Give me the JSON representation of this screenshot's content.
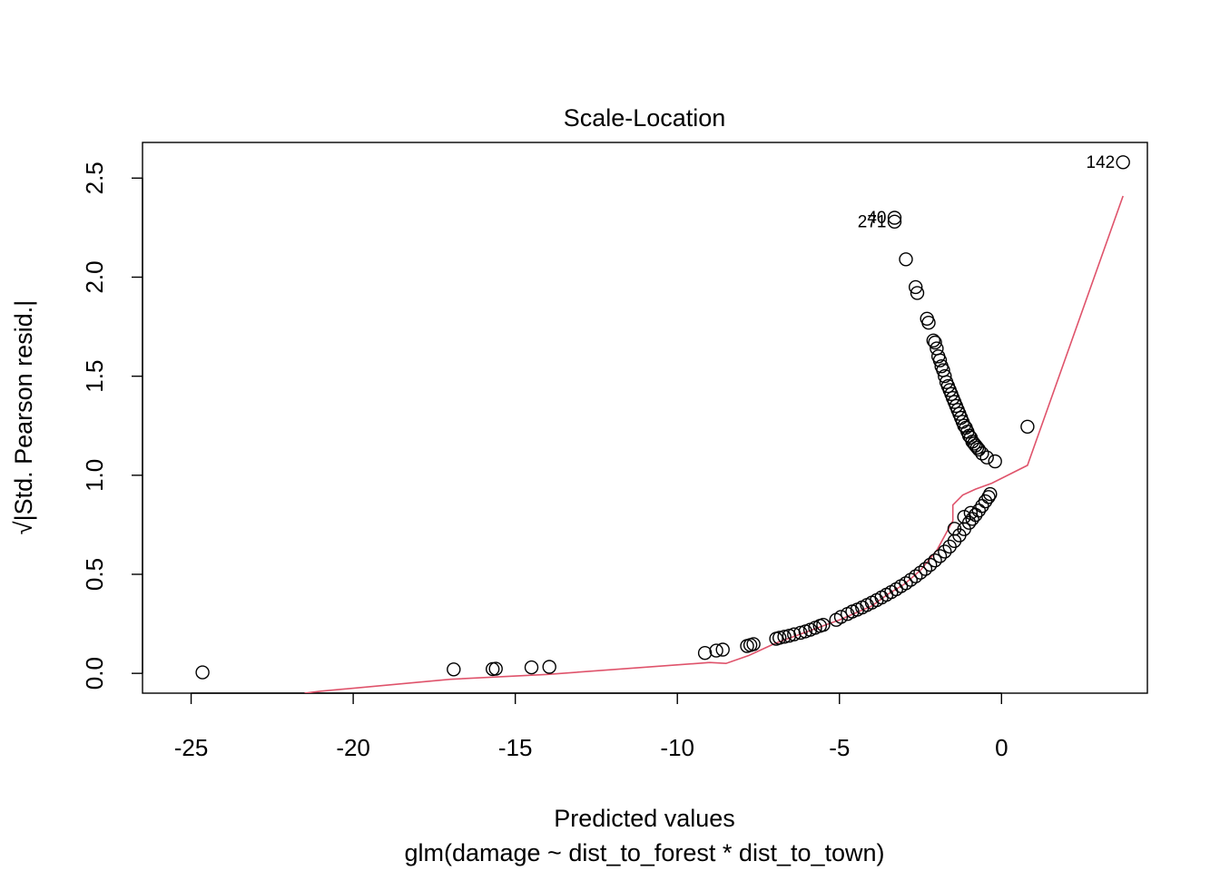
{
  "chart_data": {
    "type": "scatter",
    "title": "Scale-Location",
    "xlabel": "Predicted values",
    "subtitle": "glm(damage ~ dist_to_forest * dist_to_town)",
    "ylabel": "√|Std. Pearson resid.|",
    "xlim": [
      -26.5,
      4.5
    ],
    "ylim": [
      -0.1,
      2.68
    ],
    "xticks": [
      -25,
      -20,
      -15,
      -10,
      -5,
      0
    ],
    "xtick_labels": [
      "-25",
      "-20",
      "-15",
      "-10",
      "-5",
      "0"
    ],
    "yticks": [
      0.0,
      0.5,
      1.0,
      1.5,
      2.0,
      2.5
    ],
    "ytick_labels": [
      "0.0",
      "0.5",
      "1.0",
      "1.5",
      "2.0",
      "2.5"
    ],
    "grid": false,
    "colors": {
      "points": "#000000",
      "smooth": "#DF536B",
      "frame": "#000000"
    },
    "point_labels": [
      {
        "text": "142",
        "x": 3.75,
        "y": 2.58
      },
      {
        "text": "40",
        "x": -3.3,
        "y": 2.3
      },
      {
        "text": "271",
        "x": -3.3,
        "y": 2.28
      }
    ],
    "points": [
      [
        -24.65,
        0.005
      ],
      [
        -16.9,
        0.02
      ],
      [
        -15.7,
        0.022
      ],
      [
        -15.6,
        0.023
      ],
      [
        -14.5,
        0.03
      ],
      [
        -13.95,
        0.033
      ],
      [
        -9.15,
        0.103
      ],
      [
        -8.8,
        0.115
      ],
      [
        -8.6,
        0.12
      ],
      [
        -7.85,
        0.138
      ],
      [
        -7.75,
        0.143
      ],
      [
        -7.65,
        0.148
      ],
      [
        -6.95,
        0.175
      ],
      [
        -6.85,
        0.18
      ],
      [
        -6.7,
        0.185
      ],
      [
        -6.55,
        0.19
      ],
      [
        -6.4,
        0.197
      ],
      [
        -6.2,
        0.205
      ],
      [
        -6.05,
        0.212
      ],
      [
        -5.9,
        0.22
      ],
      [
        -5.75,
        0.23
      ],
      [
        -5.6,
        0.24
      ],
      [
        -5.5,
        0.245
      ],
      [
        -5.1,
        0.27
      ],
      [
        -4.95,
        0.285
      ],
      [
        -4.75,
        0.3
      ],
      [
        -4.6,
        0.312
      ],
      [
        -4.45,
        0.322
      ],
      [
        -4.3,
        0.333
      ],
      [
        -4.15,
        0.345
      ],
      [
        -4.0,
        0.357
      ],
      [
        -3.85,
        0.37
      ],
      [
        -3.7,
        0.383
      ],
      [
        -3.55,
        0.397
      ],
      [
        -3.4,
        0.41
      ],
      [
        -3.25,
        0.425
      ],
      [
        -3.1,
        0.44
      ],
      [
        -2.95,
        0.455
      ],
      [
        -2.8,
        0.472
      ],
      [
        -2.65,
        0.49
      ],
      [
        -2.5,
        0.508
      ],
      [
        -2.35,
        0.527
      ],
      [
        -2.2,
        0.548
      ],
      [
        -2.05,
        0.57
      ],
      [
        -1.9,
        0.592
      ],
      [
        -1.75,
        0.615
      ],
      [
        -1.6,
        0.64
      ],
      [
        -1.45,
        0.668
      ],
      [
        -1.3,
        0.697
      ],
      [
        -1.15,
        0.728
      ],
      [
        -1.0,
        0.76
      ],
      [
        -0.9,
        0.78
      ],
      [
        -0.8,
        0.8
      ],
      [
        -0.7,
        0.822
      ],
      [
        -0.6,
        0.845
      ],
      [
        -0.5,
        0.868
      ],
      [
        -0.4,
        0.89
      ],
      [
        -0.35,
        0.905
      ],
      [
        -1.45,
        0.73
      ],
      [
        -1.15,
        0.79
      ],
      [
        -0.95,
        0.81
      ],
      [
        -3.3,
        2.3
      ],
      [
        -3.3,
        2.28
      ],
      [
        -2.95,
        2.09
      ],
      [
        -2.65,
        1.95
      ],
      [
        -2.6,
        1.92
      ],
      [
        -2.3,
        1.79
      ],
      [
        -2.25,
        1.77
      ],
      [
        -2.1,
        1.68
      ],
      [
        -2.05,
        1.67
      ],
      [
        -2.0,
        1.64
      ],
      [
        -1.95,
        1.6
      ],
      [
        -1.9,
        1.58
      ],
      [
        -1.85,
        1.55
      ],
      [
        -1.8,
        1.53
      ],
      [
        -1.75,
        1.5
      ],
      [
        -1.7,
        1.47
      ],
      [
        -1.65,
        1.45
      ],
      [
        -1.6,
        1.43
      ],
      [
        -1.55,
        1.41
      ],
      [
        -1.5,
        1.39
      ],
      [
        -1.45,
        1.37
      ],
      [
        -1.4,
        1.35
      ],
      [
        -1.35,
        1.33
      ],
      [
        -1.3,
        1.31
      ],
      [
        -1.25,
        1.29
      ],
      [
        -1.2,
        1.27
      ],
      [
        -1.15,
        1.25
      ],
      [
        -1.1,
        1.24
      ],
      [
        -1.05,
        1.22
      ],
      [
        -1.0,
        1.2
      ],
      [
        -0.95,
        1.19
      ],
      [
        -0.9,
        1.17
      ],
      [
        -0.85,
        1.16
      ],
      [
        -0.8,
        1.15
      ],
      [
        -0.75,
        1.14
      ],
      [
        -0.7,
        1.13
      ],
      [
        -0.6,
        1.11
      ],
      [
        -0.45,
        1.09
      ],
      [
        -0.2,
        1.07
      ],
      [
        0.8,
        1.245
      ],
      [
        3.75,
        2.58
      ]
    ],
    "smooth_line": [
      [
        -21.5,
        -0.1
      ],
      [
        -21.0,
        -0.09
      ],
      [
        -17.0,
        -0.03
      ],
      [
        -14.0,
        -0.005
      ],
      [
        -9.0,
        0.055
      ],
      [
        -8.5,
        0.05
      ],
      [
        -7.8,
        0.09
      ],
      [
        -7.0,
        0.15
      ],
      [
        -6.0,
        0.21
      ],
      [
        -5.0,
        0.27
      ],
      [
        -4.0,
        0.34
      ],
      [
        -3.5,
        0.4
      ],
      [
        -3.0,
        0.45
      ],
      [
        -2.5,
        0.52
      ],
      [
        -2.0,
        0.62
      ],
      [
        -1.5,
        0.77
      ],
      [
        -1.5,
        0.85
      ],
      [
        -1.2,
        0.9
      ],
      [
        -0.8,
        0.93
      ],
      [
        -0.3,
        0.96
      ],
      [
        0.8,
        1.05
      ],
      [
        3.75,
        2.41
      ]
    ]
  }
}
